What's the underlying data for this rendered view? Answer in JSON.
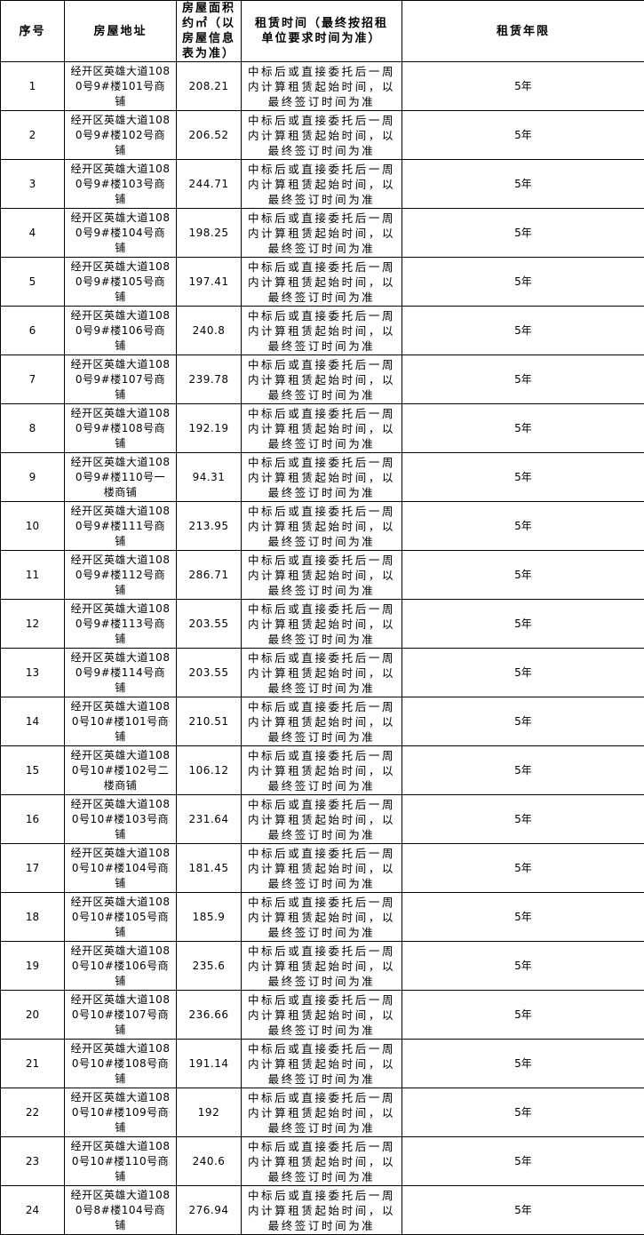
{
  "headers": [
    "序号",
    "房屋地址",
    "房屋面积约㎡（以房屋信息表为准）",
    "租赁时间（最终按招租单位要求时间为准）",
    "租赁年限"
  ],
  "rental_time": "中标后或直接委托后一周内计算租赁起始时间，以最终签订时间为准",
  "term": "5年",
  "rows": [
    {
      "no": "1",
      "address": "经开区英雄大道1080号9#楼101号商铺",
      "area": "208.21"
    },
    {
      "no": "2",
      "address": "经开区英雄大道1080号9#楼102号商铺",
      "area": "206.52"
    },
    {
      "no": "3",
      "address": "经开区英雄大道1080号9#楼103号商铺",
      "area": "244.71"
    },
    {
      "no": "4",
      "address": "经开区英雄大道1080号9#楼104号商铺",
      "area": "198.25"
    },
    {
      "no": "5",
      "address": "经开区英雄大道1080号9#楼105号商铺",
      "area": "197.41"
    },
    {
      "no": "6",
      "address": "经开区英雄大道1080号9#楼106号商铺",
      "area": "240.8"
    },
    {
      "no": "7",
      "address": "经开区英雄大道1080号9#楼107号商铺",
      "area": "239.78"
    },
    {
      "no": "8",
      "address": "经开区英雄大道1080号9#楼108号商铺",
      "area": "192.19"
    },
    {
      "no": "9",
      "address": "经开区英雄大道1080号9#楼110号一楼商铺",
      "area": "94.31"
    },
    {
      "no": "10",
      "address": "经开区英雄大道1080号9#楼111号商铺",
      "area": "213.95"
    },
    {
      "no": "11",
      "address": "经开区英雄大道1080号9#楼112号商铺",
      "area": "286.71"
    },
    {
      "no": "12",
      "address": "经开区英雄大道1080号9#楼113号商铺",
      "area": "203.55"
    },
    {
      "no": "13",
      "address": "经开区英雄大道1080号9#楼114号商铺",
      "area": "203.55"
    },
    {
      "no": "14",
      "address": "经开区英雄大道1080号10#楼101号商铺",
      "area": "210.51"
    },
    {
      "no": "15",
      "address": "经开区英雄大道1080号10#楼102号二楼商铺",
      "area": "106.12"
    },
    {
      "no": "16",
      "address": "经开区英雄大道1080号10#楼103号商铺",
      "area": "231.64"
    },
    {
      "no": "17",
      "address": "经开区英雄大道1080号10#楼104号商铺",
      "area": "181.45"
    },
    {
      "no": "18",
      "address": "经开区英雄大道1080号10#楼105号商铺",
      "area": "185.9"
    },
    {
      "no": "19",
      "address": "经开区英雄大道1080号10#楼106号商铺",
      "area": "235.6"
    },
    {
      "no": "20",
      "address": "经开区英雄大道1080号10#楼107号商铺",
      "area": "236.66"
    },
    {
      "no": "21",
      "address": "经开区英雄大道1080号10#楼108号商铺",
      "area": "191.14"
    },
    {
      "no": "22",
      "address": "经开区英雄大道1080号10#楼109号商铺",
      "area": "192"
    },
    {
      "no": "23",
      "address": "经开区英雄大道1080号10#楼110号商铺",
      "area": "240.6"
    },
    {
      "no": "24",
      "address": "经开区英雄大道1080号8#楼104号商铺",
      "area": "276.94"
    }
  ]
}
